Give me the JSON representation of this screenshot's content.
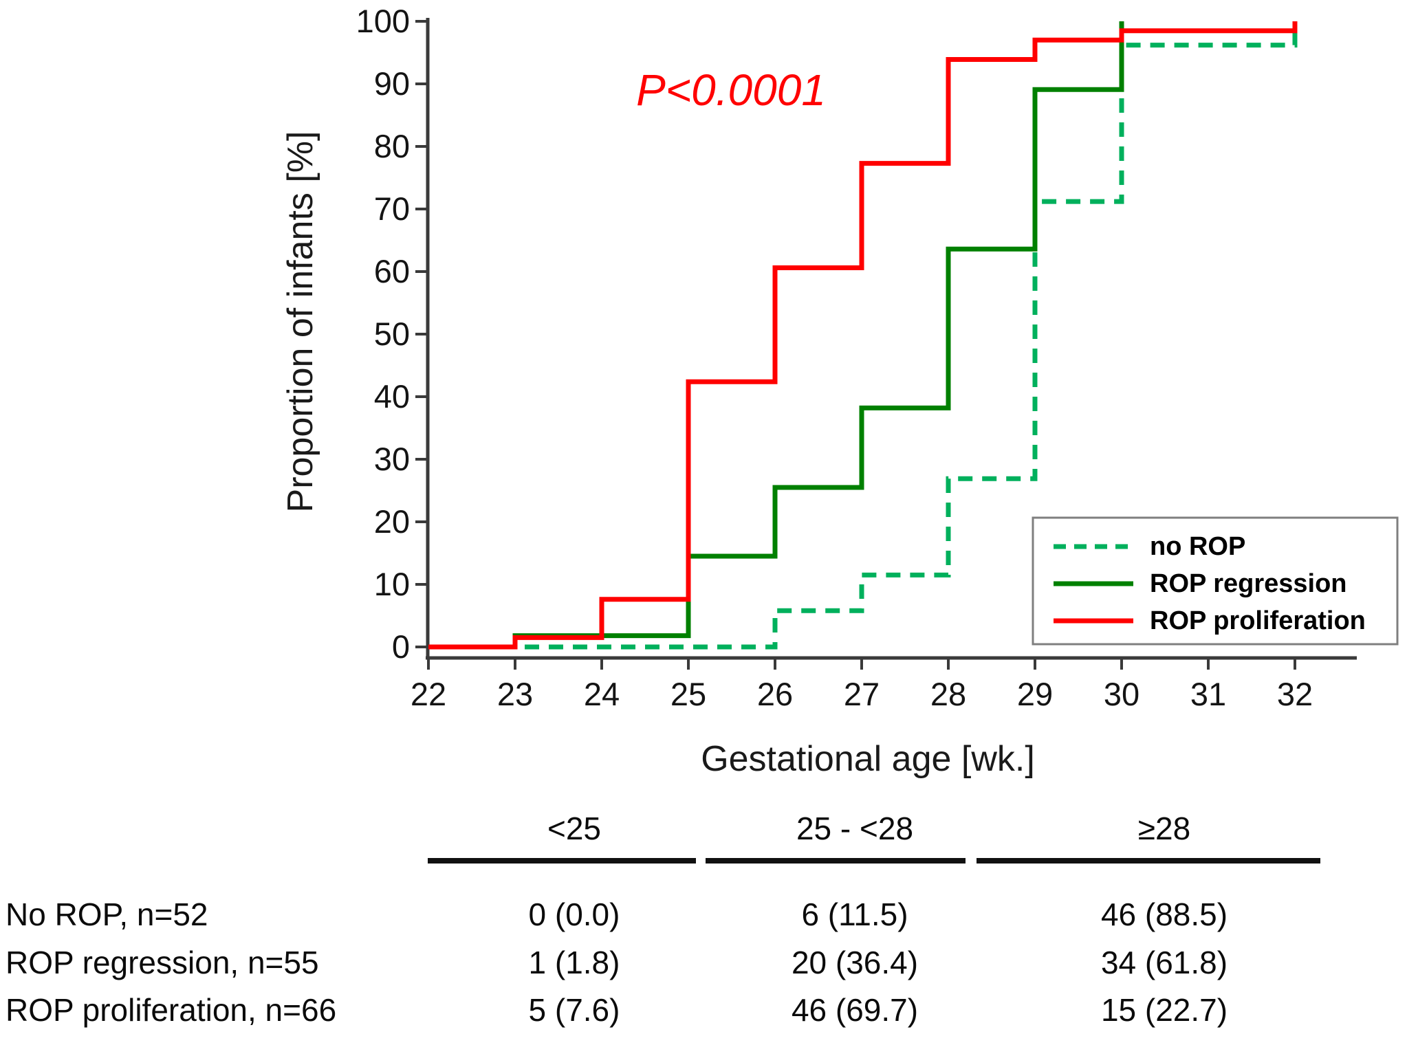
{
  "chart_data": {
    "type": "line",
    "subtype": "cumulative-step-distribution",
    "annotation": "P<0.0001",
    "annotation_color": "#ff0000",
    "x_axis": {
      "label": "Gestational age [wk.]",
      "tick_labels": [
        "22",
        "23",
        "24",
        "25",
        "26",
        "27",
        "28",
        "29",
        "30",
        "31",
        "32"
      ],
      "range": [
        22,
        32
      ],
      "grid": false
    },
    "y_axis": {
      "label": "Proportion of infants [%]",
      "tick_labels": [
        "0",
        "10",
        "20",
        "30",
        "40",
        "50",
        "60",
        "70",
        "80",
        "90",
        "100"
      ],
      "range": [
        0,
        100
      ],
      "grid": false
    },
    "legend_position": "lower right",
    "series": [
      {
        "name": "no ROP",
        "line_style": "dashed",
        "color": "#00b05c",
        "points": [
          [
            22,
            0
          ],
          [
            26,
            5.8
          ],
          [
            27,
            11.5
          ],
          [
            28,
            26.9
          ],
          [
            29,
            71.2
          ],
          [
            30,
            96.2
          ],
          [
            32,
            100
          ]
        ]
      },
      {
        "name": "ROP regression",
        "line_style": "solid",
        "color": "#008000",
        "points": [
          [
            22,
            0
          ],
          [
            23,
            1.8
          ],
          [
            25,
            14.5
          ],
          [
            26,
            25.5
          ],
          [
            27,
            38.2
          ],
          [
            28,
            63.6
          ],
          [
            29,
            89.1
          ],
          [
            30,
            100
          ]
        ]
      },
      {
        "name": "ROP proliferation",
        "line_style": "solid",
        "color": "#ff0000",
        "points": [
          [
            22,
            0
          ],
          [
            23,
            1.5
          ],
          [
            24,
            7.6
          ],
          [
            25,
            42.4
          ],
          [
            26,
            60.6
          ],
          [
            27,
            77.3
          ],
          [
            28,
            93.9
          ],
          [
            29,
            97.0
          ],
          [
            30,
            98.5
          ],
          [
            32,
            100
          ]
        ]
      }
    ]
  },
  "table": {
    "col_headers": [
      "<25",
      "25 - <28",
      "≥28"
    ],
    "rows": [
      {
        "label": "No ROP, n=52",
        "values": [
          "0 (0.0)",
          "6 (11.5)",
          "46 (88.5)"
        ]
      },
      {
        "label": "ROP regression, n=55",
        "values": [
          "1 (1.8)",
          "20 (36.4)",
          "34 (61.8)"
        ]
      },
      {
        "label": "ROP proliferation, n=66",
        "values": [
          "5 (7.6)",
          "46 (69.7)",
          "15 (22.7)"
        ]
      }
    ]
  }
}
